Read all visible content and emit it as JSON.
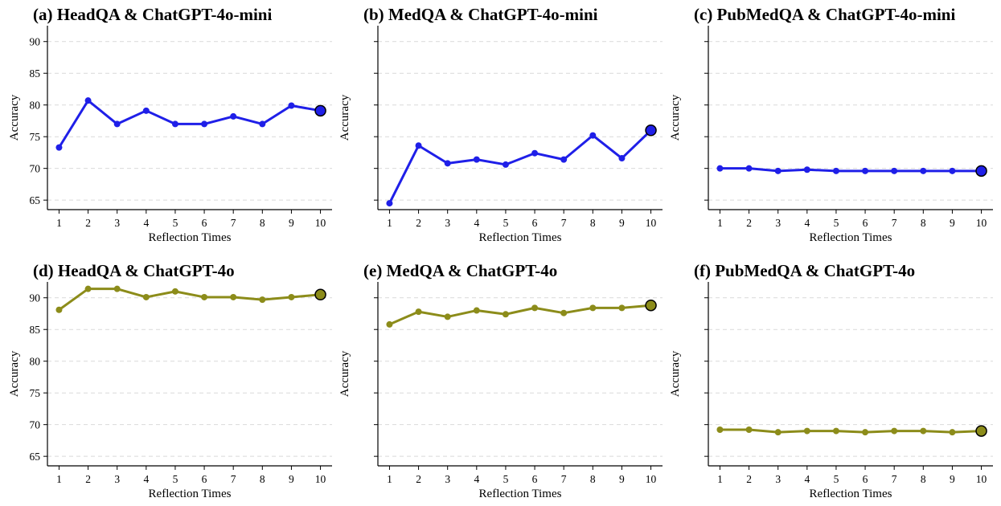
{
  "figure": {
    "panels": [
      {
        "title": "(a) HeadQA & ChatGPT-4o-mini"
      },
      {
        "title": "(b) MedQA & ChatGPT-4o-mini"
      },
      {
        "title": "(c) PubMedQA & ChatGPT-4o-mini"
      },
      {
        "title": "(d) HeadQA & ChatGPT-4o"
      },
      {
        "title": "(e) MedQA & ChatGPT-4o"
      },
      {
        "title": "(f) PubMedQA & ChatGPT-4o"
      }
    ]
  },
  "colors": {
    "mini_series": "#1f1fe8",
    "full_series": "#8c8c1a",
    "grid": "#d9d9d9",
    "axis": "#000000"
  },
  "chart_data": [
    {
      "type": "line",
      "title": "(a) HeadQA & ChatGPT-4o-mini",
      "xlabel": "Reflection Times",
      "ylabel": "Accuracy",
      "x": [
        1,
        2,
        3,
        4,
        5,
        6,
        7,
        8,
        9,
        10
      ],
      "xticks": [
        1,
        2,
        3,
        4,
        5,
        6,
        7,
        8,
        9,
        10
      ],
      "series": [
        {
          "values": [
            73.3,
            80.7,
            77.0,
            79.1,
            77.0,
            77.0,
            78.2,
            77.0,
            79.9,
            79.1
          ]
        }
      ],
      "ylim": [
        63.5,
        92.5
      ],
      "yticks": [
        65,
        70,
        75,
        80,
        85,
        90
      ],
      "show_ytick_labels": true,
      "grid": "horizontal-dashed",
      "highlight_last_point": true,
      "color": "#1f1fe8"
    },
    {
      "type": "line",
      "title": "(b) MedQA & ChatGPT-4o-mini",
      "xlabel": "Reflection Times",
      "ylabel": "Accuracy",
      "x": [
        1,
        2,
        3,
        4,
        5,
        6,
        7,
        8,
        9,
        10
      ],
      "xticks": [
        1,
        2,
        3,
        4,
        5,
        6,
        7,
        8,
        9,
        10
      ],
      "series": [
        {
          "values": [
            64.5,
            73.6,
            70.8,
            71.4,
            70.6,
            72.4,
            71.4,
            75.2,
            71.6,
            76.0
          ]
        }
      ],
      "ylim": [
        63.5,
        92.5
      ],
      "yticks": [
        65,
        70,
        75,
        80,
        85,
        90
      ],
      "show_ytick_labels": false,
      "grid": "horizontal-dashed",
      "highlight_last_point": true,
      "color": "#1f1fe8"
    },
    {
      "type": "line",
      "title": "(c) PubMedQA & ChatGPT-4o-mini",
      "xlabel": "Reflection Times",
      "ylabel": "Accuracy",
      "x": [
        1,
        2,
        3,
        4,
        5,
        6,
        7,
        8,
        9,
        10
      ],
      "xticks": [
        1,
        2,
        3,
        4,
        5,
        6,
        7,
        8,
        9,
        10
      ],
      "series": [
        {
          "values": [
            70.0,
            70.0,
            69.6,
            69.8,
            69.6,
            69.6,
            69.6,
            69.6,
            69.6,
            69.6
          ]
        }
      ],
      "ylim": [
        63.5,
        92.5
      ],
      "yticks": [
        65,
        70,
        75,
        80,
        85,
        90
      ],
      "show_ytick_labels": false,
      "grid": "horizontal-dashed",
      "highlight_last_point": true,
      "color": "#1f1fe8"
    },
    {
      "type": "line",
      "title": "(d) HeadQA & ChatGPT-4o",
      "xlabel": "Reflection Times",
      "ylabel": "Accuracy",
      "x": [
        1,
        2,
        3,
        4,
        5,
        6,
        7,
        8,
        9,
        10
      ],
      "xticks": [
        1,
        2,
        3,
        4,
        5,
        6,
        7,
        8,
        9,
        10
      ],
      "series": [
        {
          "values": [
            88.1,
            91.4,
            91.4,
            90.1,
            91.0,
            90.1,
            90.1,
            89.7,
            90.1,
            90.5
          ]
        }
      ],
      "ylim": [
        63.5,
        92.5
      ],
      "yticks": [
        65,
        70,
        75,
        80,
        85,
        90
      ],
      "show_ytick_labels": true,
      "grid": "horizontal-dashed",
      "highlight_last_point": true,
      "color": "#8c8c1a"
    },
    {
      "type": "line",
      "title": "(e) MedQA & ChatGPT-4o",
      "xlabel": "Reflection Times",
      "ylabel": "Accuracy",
      "x": [
        1,
        2,
        3,
        4,
        5,
        6,
        7,
        8,
        9,
        10
      ],
      "xticks": [
        1,
        2,
        3,
        4,
        5,
        6,
        7,
        8,
        9,
        10
      ],
      "series": [
        {
          "values": [
            85.8,
            87.8,
            87.0,
            88.0,
            87.4,
            88.4,
            87.6,
            88.4,
            88.4,
            88.8
          ]
        }
      ],
      "ylim": [
        63.5,
        92.5
      ],
      "yticks": [
        65,
        70,
        75,
        80,
        85,
        90
      ],
      "show_ytick_labels": false,
      "grid": "horizontal-dashed",
      "highlight_last_point": true,
      "color": "#8c8c1a"
    },
    {
      "type": "line",
      "title": "(f) PubMedQA & ChatGPT-4o",
      "xlabel": "Reflection Times",
      "ylabel": "Accuracy",
      "x": [
        1,
        2,
        3,
        4,
        5,
        6,
        7,
        8,
        9,
        10
      ],
      "xticks": [
        1,
        2,
        3,
        4,
        5,
        6,
        7,
        8,
        9,
        10
      ],
      "series": [
        {
          "values": [
            69.2,
            69.2,
            68.8,
            69.0,
            69.0,
            68.8,
            69.0,
            69.0,
            68.8,
            69.0
          ]
        }
      ],
      "ylim": [
        63.5,
        92.5
      ],
      "yticks": [
        65,
        70,
        75,
        80,
        85,
        90
      ],
      "show_ytick_labels": false,
      "grid": "horizontal-dashed",
      "highlight_last_point": true,
      "color": "#8c8c1a"
    }
  ]
}
